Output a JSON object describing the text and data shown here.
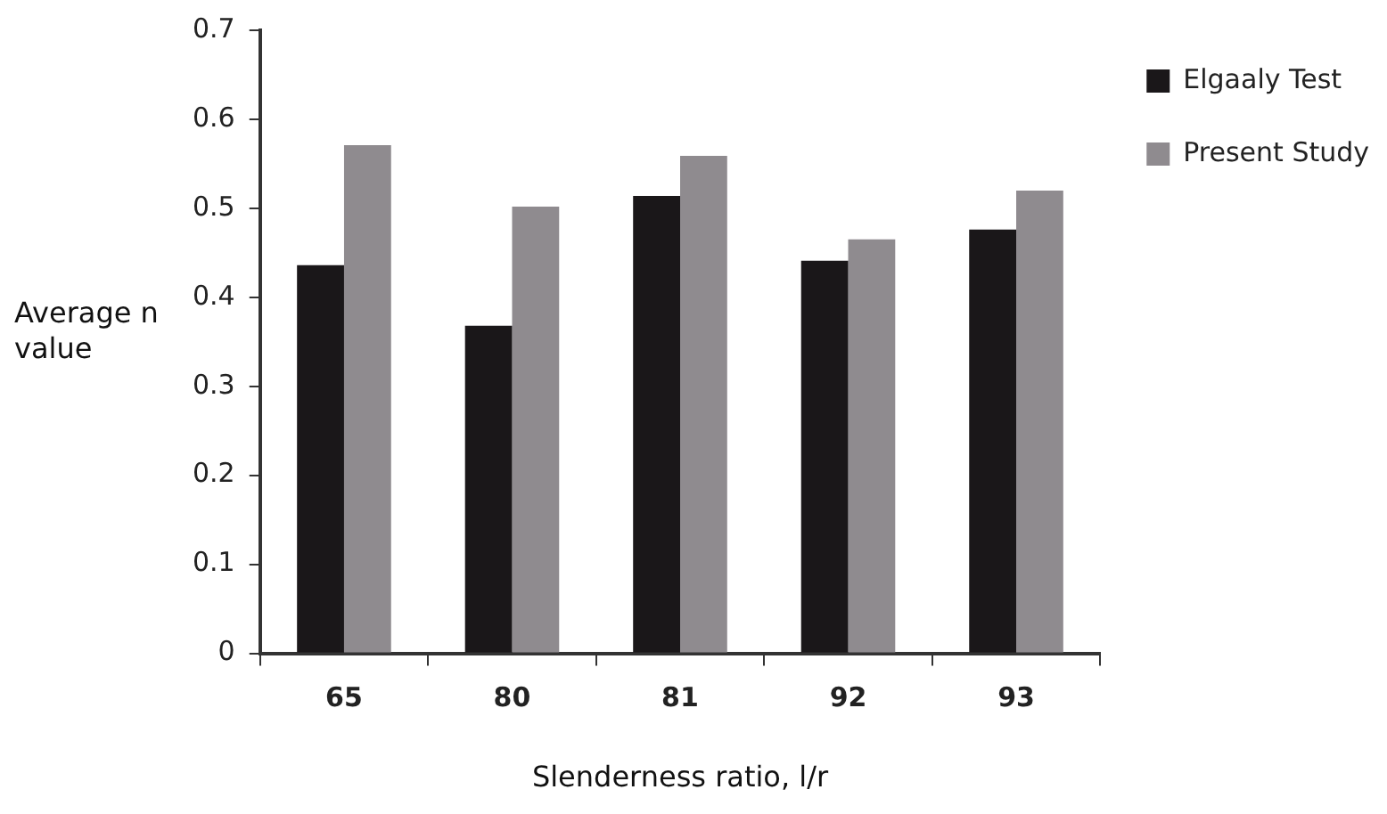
{
  "chart_data": {
    "type": "bar",
    "xlabel": "Slenderness ratio, l/r",
    "ylabel": "Average n value",
    "categories": [
      "65",
      "80",
      "81",
      "92",
      "93"
    ],
    "series": [
      {
        "name": "Elgaaly Test",
        "color": "#1a1719",
        "values": [
          0.436,
          0.368,
          0.514,
          0.441,
          0.476
        ]
      },
      {
        "name": "Present Study",
        "color": "#8f8b8f",
        "values": [
          0.571,
          0.502,
          0.559,
          0.465,
          0.52
        ]
      }
    ],
    "ylim": [
      0,
      0.7
    ],
    "yticks": [
      0,
      0.1,
      0.2,
      0.3,
      0.4,
      0.5,
      0.6,
      0.7
    ],
    "grid": false,
    "legend": "top right"
  }
}
